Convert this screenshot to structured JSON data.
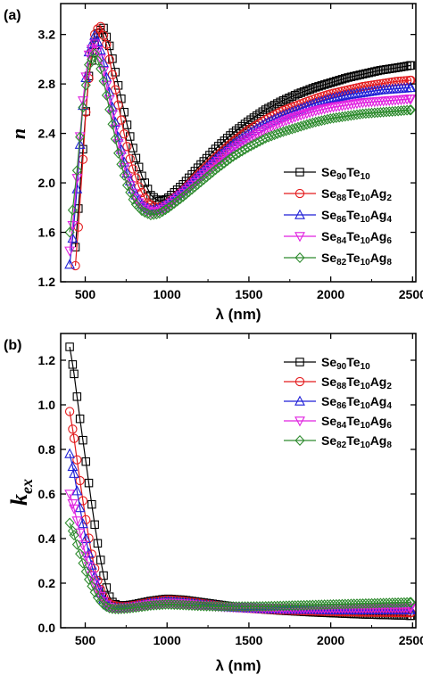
{
  "chart_data": [
    {
      "type": "line",
      "panel_label": "(a)",
      "xlabel": "λ (nm)",
      "ylabel": "n",
      "xlim": [
        350,
        2520
      ],
      "ylim": [
        1.2,
        3.45
      ],
      "xticks": [
        {
          "value": 500,
          "label": "500"
        },
        {
          "value": 1000,
          "label": "1000"
        },
        {
          "value": 1500,
          "label": "1500"
        },
        {
          "value": 2000,
          "label": "2000"
        },
        {
          "value": 2500,
          "label": "2500"
        }
      ],
      "yticks": [
        {
          "value": 1.2,
          "label": "1.2"
        },
        {
          "value": 1.6,
          "label": "1.6"
        },
        {
          "value": 2.0,
          "label": "2.0"
        },
        {
          "value": 2.4,
          "label": "2.4"
        },
        {
          "value": 2.8,
          "label": "2.8"
        },
        {
          "value": 3.2,
          "label": "3.2"
        }
      ],
      "legend_position": "center-right",
      "series": [
        {
          "name": "Se",
          "sub1": "90",
          "el2": "Te",
          "sub2": "10",
          "el3": "",
          "sub3": "",
          "color": "#000000",
          "marker": "square",
          "x": [
            440,
            470,
            520,
            570,
            610,
            650,
            700,
            750,
            800,
            850,
            900,
            950,
            1000,
            1100,
            1200,
            1300,
            1400,
            1500,
            1600,
            1700,
            1800,
            1900,
            2000,
            2100,
            2200,
            2300,
            2400,
            2490
          ],
          "y": [
            1.48,
            2.0,
            2.85,
            3.2,
            3.26,
            3.1,
            2.8,
            2.5,
            2.24,
            2.04,
            1.9,
            1.85,
            1.87,
            1.99,
            2.14,
            2.28,
            2.4,
            2.5,
            2.59,
            2.66,
            2.72,
            2.77,
            2.81,
            2.85,
            2.88,
            2.91,
            2.93,
            2.95
          ]
        },
        {
          "name": "Se",
          "sub1": "88",
          "el2": "Te",
          "sub2": "10",
          "el3": "Ag",
          "sub3": "2",
          "color": "#e31a1c",
          "marker": "circle",
          "x": [
            440,
            470,
            510,
            550,
            590,
            630,
            680,
            730,
            780,
            830,
            880,
            930,
            980,
            1100,
            1200,
            1300,
            1400,
            1500,
            1600,
            1700,
            1800,
            1900,
            2000,
            2100,
            2200,
            2300,
            2400,
            2490
          ],
          "y": [
            1.33,
            1.85,
            2.7,
            3.18,
            3.28,
            3.12,
            2.78,
            2.44,
            2.16,
            1.96,
            1.84,
            1.8,
            1.81,
            1.94,
            2.08,
            2.21,
            2.33,
            2.43,
            2.51,
            2.58,
            2.63,
            2.68,
            2.72,
            2.75,
            2.78,
            2.8,
            2.82,
            2.83
          ]
        },
        {
          "name": "Se",
          "sub1": "86",
          "el2": "Te",
          "sub2": "10",
          "el3": "Ag",
          "sub3": "4",
          "color": "#1f1fd6",
          "marker": "triangle-up",
          "x": [
            405,
            440,
            480,
            520,
            560,
            600,
            650,
            700,
            750,
            800,
            850,
            900,
            950,
            1000,
            1100,
            1200,
            1300,
            1400,
            1500,
            1600,
            1700,
            1800,
            1900,
            2000,
            2100,
            2200,
            2300,
            2400,
            2490
          ],
          "y": [
            1.34,
            1.75,
            2.55,
            3.05,
            3.2,
            3.05,
            2.72,
            2.38,
            2.1,
            1.92,
            1.82,
            1.78,
            1.79,
            1.83,
            1.94,
            2.07,
            2.2,
            2.31,
            2.4,
            2.48,
            2.54,
            2.59,
            2.64,
            2.68,
            2.71,
            2.73,
            2.75,
            2.76,
            2.77
          ]
        },
        {
          "name": "Se",
          "sub1": "84",
          "el2": "Te",
          "sub2": "10",
          "el3": "Ag",
          "sub3": "6",
          "color": "#e021e0",
          "marker": "triangle-down",
          "x": [
            405,
            440,
            480,
            520,
            560,
            600,
            650,
            700,
            750,
            800,
            850,
            900,
            950,
            1000,
            1100,
            1200,
            1300,
            1400,
            1500,
            1600,
            1700,
            1800,
            1900,
            2000,
            2100,
            2200,
            2300,
            2400,
            2490
          ],
          "y": [
            1.45,
            1.85,
            2.6,
            3.03,
            3.13,
            2.98,
            2.66,
            2.33,
            2.06,
            1.89,
            1.8,
            1.76,
            1.77,
            1.81,
            1.92,
            2.04,
            2.16,
            2.27,
            2.36,
            2.43,
            2.49,
            2.54,
            2.58,
            2.61,
            2.63,
            2.65,
            2.66,
            2.67,
            2.68
          ]
        },
        {
          "name": "Se",
          "sub1": "82",
          "el2": "Te",
          "sub2": "10",
          "el3": "Ag",
          "sub3": "8",
          "color": "#2e8b2e",
          "marker": "diamond",
          "x": [
            405,
            440,
            480,
            520,
            560,
            600,
            650,
            700,
            750,
            800,
            850,
            900,
            950,
            1000,
            1100,
            1200,
            1300,
            1400,
            1500,
            1600,
            1700,
            1800,
            1900,
            2000,
            2100,
            2200,
            2300,
            2400,
            2490
          ],
          "y": [
            1.6,
            1.95,
            2.55,
            2.95,
            3.05,
            2.9,
            2.58,
            2.25,
            2.0,
            1.84,
            1.77,
            1.74,
            1.75,
            1.79,
            1.89,
            2.0,
            2.11,
            2.21,
            2.29,
            2.36,
            2.41,
            2.45,
            2.49,
            2.52,
            2.54,
            2.56,
            2.57,
            2.58,
            2.59
          ]
        }
      ]
    },
    {
      "type": "line",
      "panel_label": "(b)",
      "xlabel": "λ (nm)",
      "ylabel": "k",
      "ylabel_sub": "ex",
      "xlim": [
        350,
        2520
      ],
      "ylim": [
        0.0,
        1.32
      ],
      "xticks": [
        {
          "value": 500,
          "label": "500"
        },
        {
          "value": 1000,
          "label": "1000"
        },
        {
          "value": 1500,
          "label": "1500"
        },
        {
          "value": 2000,
          "label": "2000"
        },
        {
          "value": 2500,
          "label": "2500"
        }
      ],
      "yticks": [
        {
          "value": 0.0,
          "label": "0.0"
        },
        {
          "value": 0.2,
          "label": "0.2"
        },
        {
          "value": 0.4,
          "label": "0.4"
        },
        {
          "value": 0.6,
          "label": "0.6"
        },
        {
          "value": 0.8,
          "label": "0.8"
        },
        {
          "value": 1.0,
          "label": "1.0"
        },
        {
          "value": 1.2,
          "label": "1.2"
        }
      ],
      "legend_position": "top-right",
      "series": [
        {
          "name": "Se",
          "sub1": "90",
          "el2": "Te",
          "sub2": "10",
          "el3": "",
          "sub3": "",
          "color": "#000000",
          "marker": "square",
          "x": [
            405,
            430,
            460,
            490,
            520,
            550,
            580,
            610,
            640,
            670,
            700,
            750,
            800,
            900,
            1000,
            1100,
            1200,
            1300,
            1400,
            1500,
            1600,
            1700,
            1800,
            1900,
            2000,
            2100,
            2200,
            2300,
            2400,
            2490
          ],
          "y": [
            1.26,
            1.15,
            0.98,
            0.82,
            0.66,
            0.5,
            0.36,
            0.24,
            0.15,
            0.11,
            0.1,
            0.1,
            0.105,
            0.12,
            0.13,
            0.125,
            0.115,
            0.105,
            0.095,
            0.088,
            0.082,
            0.077,
            0.073,
            0.069,
            0.066,
            0.063,
            0.06,
            0.058,
            0.056,
            0.054
          ]
        },
        {
          "name": "Se",
          "sub1": "88",
          "el2": "Te",
          "sub2": "10",
          "el3": "Ag",
          "sub3": "2",
          "color": "#e31a1c",
          "marker": "circle",
          "x": [
            405,
            430,
            460,
            490,
            520,
            550,
            580,
            610,
            640,
            670,
            700,
            750,
            800,
            900,
            1000,
            1100,
            1200,
            1300,
            1400,
            1500,
            1600,
            1700,
            1800,
            1900,
            2000,
            2100,
            2200,
            2300,
            2400,
            2490
          ],
          "y": [
            0.97,
            0.86,
            0.7,
            0.55,
            0.41,
            0.29,
            0.2,
            0.14,
            0.11,
            0.1,
            0.095,
            0.095,
            0.1,
            0.115,
            0.125,
            0.12,
            0.11,
            0.1,
            0.092,
            0.087,
            0.083,
            0.08,
            0.077,
            0.075,
            0.073,
            0.071,
            0.07,
            0.069,
            0.068,
            0.067
          ]
        },
        {
          "name": "Se",
          "sub1": "86",
          "el2": "Te",
          "sub2": "10",
          "el3": "Ag",
          "sub3": "4",
          "color": "#1f1fd6",
          "marker": "triangle-up",
          "x": [
            405,
            430,
            460,
            490,
            520,
            550,
            580,
            610,
            640,
            670,
            700,
            750,
            800,
            900,
            1000,
            1100,
            1200,
            1300,
            1400,
            1500,
            1600,
            1700,
            1800,
            1900,
            2000,
            2100,
            2200,
            2300,
            2400,
            2490
          ],
          "y": [
            0.78,
            0.7,
            0.57,
            0.45,
            0.34,
            0.25,
            0.18,
            0.13,
            0.1,
            0.09,
            0.088,
            0.09,
            0.095,
            0.11,
            0.118,
            0.113,
            0.105,
            0.098,
            0.092,
            0.088,
            0.085,
            0.083,
            0.082,
            0.081,
            0.08,
            0.08,
            0.079,
            0.079,
            0.079,
            0.079
          ]
        },
        {
          "name": "Se",
          "sub1": "84",
          "el2": "Te",
          "sub2": "10",
          "el3": "Ag",
          "sub3": "6",
          "color": "#e021e0",
          "marker": "triangle-down",
          "x": [
            405,
            430,
            460,
            490,
            520,
            550,
            580,
            610,
            640,
            670,
            700,
            750,
            800,
            900,
            1000,
            1100,
            1200,
            1300,
            1400,
            1500,
            1600,
            1700,
            1800,
            1900,
            2000,
            2100,
            2200,
            2300,
            2400,
            2490
          ],
          "y": [
            0.6,
            0.54,
            0.45,
            0.36,
            0.28,
            0.21,
            0.16,
            0.12,
            0.095,
            0.088,
            0.086,
            0.088,
            0.093,
            0.105,
            0.112,
            0.108,
            0.101,
            0.096,
            0.092,
            0.09,
            0.088,
            0.087,
            0.087,
            0.087,
            0.087,
            0.088,
            0.088,
            0.089,
            0.089,
            0.09
          ]
        },
        {
          "name": "Se",
          "sub1": "82",
          "el2": "Te",
          "sub2": "10",
          "el3": "Ag",
          "sub3": "8",
          "color": "#2e8b2e",
          "marker": "diamond",
          "x": [
            405,
            430,
            460,
            490,
            520,
            550,
            580,
            610,
            640,
            670,
            700,
            750,
            800,
            900,
            1000,
            1100,
            1200,
            1300,
            1400,
            1500,
            1600,
            1700,
            1800,
            1900,
            2000,
            2100,
            2200,
            2300,
            2400,
            2490
          ],
          "y": [
            0.47,
            0.42,
            0.35,
            0.28,
            0.22,
            0.17,
            0.13,
            0.105,
            0.09,
            0.085,
            0.084,
            0.086,
            0.09,
            0.1,
            0.105,
            0.102,
            0.098,
            0.096,
            0.095,
            0.095,
            0.096,
            0.098,
            0.1,
            0.102,
            0.104,
            0.106,
            0.108,
            0.11,
            0.112,
            0.114
          ]
        }
      ]
    }
  ]
}
